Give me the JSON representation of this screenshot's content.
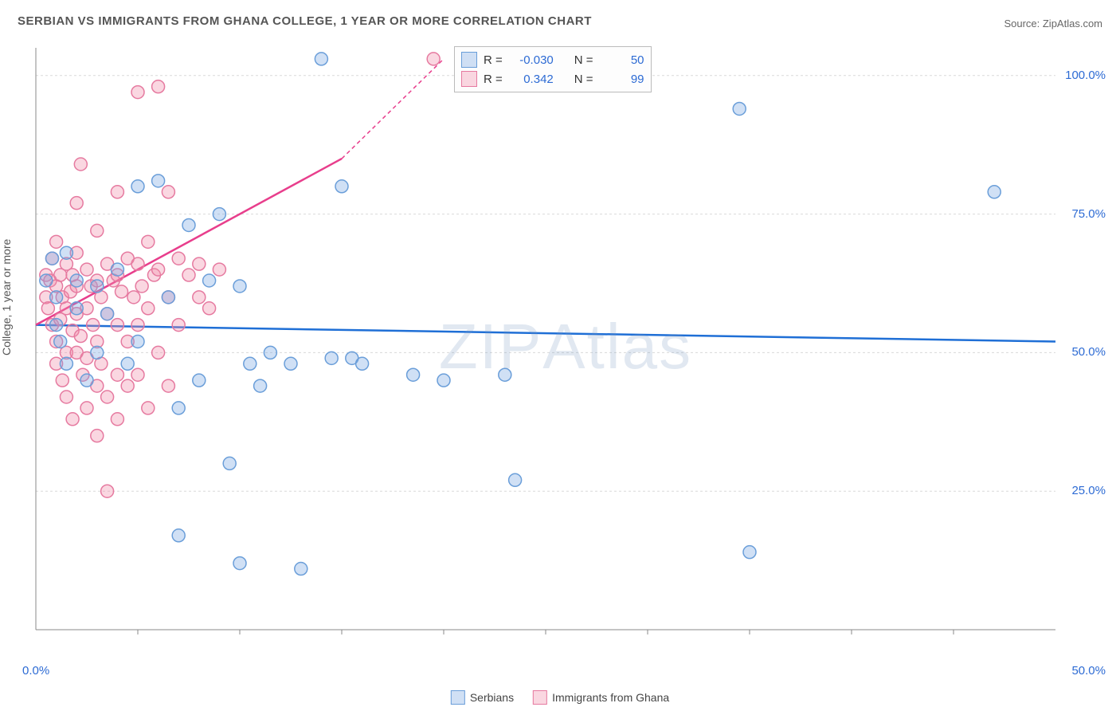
{
  "title": "SERBIAN VS IMMIGRANTS FROM GHANA COLLEGE, 1 YEAR OR MORE CORRELATION CHART",
  "source": "Source: ZipAtlas.com",
  "y_axis_label": "College, 1 year or more",
  "watermark": "ZIPAtlas",
  "chart": {
    "type": "scatter",
    "xlim": [
      0,
      50
    ],
    "ylim": [
      0,
      105
    ],
    "x_ticks": [
      0,
      50
    ],
    "x_tick_labels": [
      "0.0%",
      "50.0%"
    ],
    "y_ticks": [
      25,
      50,
      75,
      100
    ],
    "y_tick_labels": [
      "25.0%",
      "50.0%",
      "75.0%",
      "100.0%"
    ],
    "grid_color": "#d9d9d9",
    "grid_dash": "3,3",
    "axis_color": "#888888",
    "marker_radius": 8,
    "marker_stroke_width": 1.5,
    "background_color": "#ffffff"
  },
  "series": [
    {
      "name": "Serbians",
      "color_fill": "rgba(120,165,225,0.35)",
      "color_stroke": "#6a9ed9",
      "trend_line_color": "#1f6fd6",
      "trend_line_width": 2.5,
      "trend_start": [
        0,
        55
      ],
      "trend_end": [
        50,
        52
      ],
      "R": "-0.030",
      "N": "50",
      "points": [
        [
          0.5,
          63
        ],
        [
          0.8,
          67
        ],
        [
          1.0,
          60
        ],
        [
          1.0,
          55
        ],
        [
          1.2,
          52
        ],
        [
          1.5,
          48
        ],
        [
          1.5,
          68
        ],
        [
          2.0,
          63
        ],
        [
          2.0,
          58
        ],
        [
          2.5,
          45
        ],
        [
          3.0,
          62
        ],
        [
          3.0,
          50
        ],
        [
          3.5,
          57
        ],
        [
          4.0,
          65
        ],
        [
          4.5,
          48
        ],
        [
          5.0,
          52
        ],
        [
          5.0,
          80
        ],
        [
          6.0,
          81
        ],
        [
          6.5,
          60
        ],
        [
          7.0,
          40
        ],
        [
          7.0,
          17
        ],
        [
          7.5,
          73
        ],
        [
          8.0,
          45
        ],
        [
          8.5,
          63
        ],
        [
          9.0,
          75
        ],
        [
          9.5,
          30
        ],
        [
          10.0,
          62
        ],
        [
          10.0,
          12
        ],
        [
          10.5,
          48
        ],
        [
          11.0,
          44
        ],
        [
          11.5,
          50
        ],
        [
          12.5,
          48
        ],
        [
          13.0,
          11
        ],
        [
          14.0,
          103
        ],
        [
          14.5,
          49
        ],
        [
          15.0,
          80
        ],
        [
          15.5,
          49
        ],
        [
          16.0,
          48
        ],
        [
          18.5,
          46
        ],
        [
          20.0,
          45
        ],
        [
          23.0,
          46
        ],
        [
          23.5,
          27
        ],
        [
          34.5,
          94
        ],
        [
          35.0,
          14
        ],
        [
          47.0,
          79
        ]
      ]
    },
    {
      "name": "Immigrants from Ghana",
      "color_fill": "rgba(240,140,170,0.35)",
      "color_stroke": "#e67aa0",
      "trend_line_color": "#e83e8c",
      "trend_line_width": 2.5,
      "trend_start": [
        0,
        55
      ],
      "trend_end_solid": [
        15,
        85
      ],
      "trend_end_dash": [
        20,
        103
      ],
      "R": "0.342",
      "N": "99",
      "points": [
        [
          0.5,
          64
        ],
        [
          0.5,
          60
        ],
        [
          0.6,
          58
        ],
        [
          0.7,
          63
        ],
        [
          0.8,
          55
        ],
        [
          0.8,
          67
        ],
        [
          1.0,
          70
        ],
        [
          1.0,
          62
        ],
        [
          1.0,
          52
        ],
        [
          1.0,
          48
        ],
        [
          1.2,
          64
        ],
        [
          1.2,
          56
        ],
        [
          1.3,
          60
        ],
        [
          1.3,
          45
        ],
        [
          1.5,
          66
        ],
        [
          1.5,
          58
        ],
        [
          1.5,
          50
        ],
        [
          1.5,
          42
        ],
        [
          1.7,
          61
        ],
        [
          1.8,
          64
        ],
        [
          1.8,
          54
        ],
        [
          1.8,
          38
        ],
        [
          2.0,
          68
        ],
        [
          2.0,
          62
        ],
        [
          2.0,
          57
        ],
        [
          2.0,
          50
        ],
        [
          2.0,
          77
        ],
        [
          2.2,
          84
        ],
        [
          2.2,
          53
        ],
        [
          2.3,
          46
        ],
        [
          2.5,
          65
        ],
        [
          2.5,
          58
        ],
        [
          2.5,
          49
        ],
        [
          2.5,
          40
        ],
        [
          2.7,
          62
        ],
        [
          2.8,
          55
        ],
        [
          3.0,
          72
        ],
        [
          3.0,
          63
        ],
        [
          3.0,
          52
        ],
        [
          3.0,
          44
        ],
        [
          3.0,
          35
        ],
        [
          3.2,
          60
        ],
        [
          3.2,
          48
        ],
        [
          3.5,
          66
        ],
        [
          3.5,
          57
        ],
        [
          3.5,
          42
        ],
        [
          3.5,
          25
        ],
        [
          3.8,
          63
        ],
        [
          4.0,
          79
        ],
        [
          4.0,
          64
        ],
        [
          4.0,
          55
        ],
        [
          4.0,
          46
        ],
        [
          4.0,
          38
        ],
        [
          4.2,
          61
        ],
        [
          4.5,
          67
        ],
        [
          4.5,
          52
        ],
        [
          4.5,
          44
        ],
        [
          4.8,
          60
        ],
        [
          5.0,
          97
        ],
        [
          5.0,
          66
        ],
        [
          5.0,
          55
        ],
        [
          5.0,
          46
        ],
        [
          5.2,
          62
        ],
        [
          5.5,
          70
        ],
        [
          5.5,
          58
        ],
        [
          5.5,
          40
        ],
        [
          5.8,
          64
        ],
        [
          6.0,
          98
        ],
        [
          6.0,
          65
        ],
        [
          6.0,
          50
        ],
        [
          6.5,
          79
        ],
        [
          6.5,
          60
        ],
        [
          6.5,
          44
        ],
        [
          7.0,
          67
        ],
        [
          7.0,
          55
        ],
        [
          7.5,
          64
        ],
        [
          8.0,
          60
        ],
        [
          8.0,
          66
        ],
        [
          8.5,
          58
        ],
        [
          9.0,
          65
        ],
        [
          19.5,
          103
        ]
      ]
    }
  ],
  "stats_legend": {
    "prefix_R": "R =",
    "prefix_N": "N ="
  },
  "bottom_legend": {
    "items": [
      "Serbians",
      "Immigrants from Ghana"
    ]
  }
}
